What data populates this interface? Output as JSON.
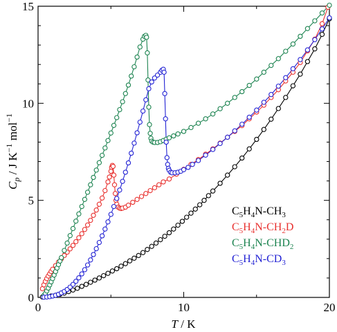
{
  "chart_data": {
    "type": "line",
    "xlabel": {
      "var": "T",
      "unit": " / K"
    },
    "ylabel": {
      "var": "C",
      "sub": "p",
      "unit": " / J K",
      "sup1": "−1",
      "unit2": " mol",
      "sup2": "−1"
    },
    "xlim": [
      0,
      20
    ],
    "ylim": [
      0,
      15
    ],
    "x_ticks": [
      0,
      10,
      20
    ],
    "y_ticks": [
      0,
      5,
      10,
      15
    ],
    "grid": false,
    "legend_position": "bottom-right",
    "series": [
      {
        "name": "C5H4N-CH3",
        "legend": {
          "main": "C",
          "s1": "5",
          "mid": "H",
          "s2": "4",
          "rest": "N-CH",
          "s3": "3",
          "tail": ""
        },
        "color": "#000000",
        "x": [
          0.3,
          0.6,
          0.9,
          1.2,
          1.5,
          1.8,
          2.1,
          2.4,
          2.7,
          3.0,
          3.3,
          3.6,
          3.9,
          4.2,
          4.5,
          4.8,
          5.1,
          5.4,
          5.7,
          6.0,
          6.3,
          6.6,
          6.9,
          7.2,
          7.5,
          7.8,
          8.1,
          8.4,
          8.7,
          9.0,
          9.3,
          9.6,
          9.9,
          10.2,
          10.5,
          10.8,
          11.1,
          11.4,
          11.7,
          12.0,
          12.5,
          13.0,
          13.5,
          14.0,
          14.5,
          15.0,
          15.5,
          16.0,
          16.5,
          17.0,
          17.5,
          18.0,
          18.5,
          19.0,
          19.5,
          20.0
        ],
        "y": [
          0.02,
          0.04,
          0.07,
          0.11,
          0.16,
          0.22,
          0.3,
          0.38,
          0.47,
          0.57,
          0.67,
          0.78,
          0.89,
          1.0,
          1.12,
          1.24,
          1.36,
          1.48,
          1.61,
          1.74,
          1.88,
          2.02,
          2.16,
          2.31,
          2.47,
          2.63,
          2.8,
          2.97,
          3.15,
          3.33,
          3.52,
          3.72,
          3.92,
          4.13,
          4.34,
          4.55,
          4.77,
          5.0,
          5.24,
          5.48,
          5.88,
          6.3,
          6.73,
          7.18,
          7.65,
          8.14,
          8.65,
          9.18,
          9.73,
          10.3,
          10.9,
          11.5,
          12.15,
          12.8,
          13.55,
          14.35
        ]
      },
      {
        "name": "C5H4N-CH2D",
        "legend": {
          "main": "C",
          "s1": "5",
          "mid": "H",
          "s2": "4",
          "rest": "N-CH",
          "s3": "2",
          "tail": "D"
        },
        "color": "#e8312f",
        "x": [
          0.3,
          0.4,
          0.5,
          0.6,
          0.7,
          0.8,
          0.9,
          1.0,
          1.2,
          1.4,
          1.6,
          1.8,
          2.0,
          2.2,
          2.4,
          2.6,
          2.8,
          3.0,
          3.2,
          3.4,
          3.6,
          3.8,
          4.0,
          4.2,
          4.4,
          4.6,
          4.8,
          4.9,
          5.0,
          5.05,
          5.1,
          5.15,
          5.2,
          5.25,
          5.3,
          5.35,
          5.4,
          5.5,
          5.6,
          5.7,
          5.8,
          6.0,
          6.2,
          6.5,
          6.8,
          7.1,
          7.4,
          7.7,
          8.0,
          8.3,
          8.6,
          9.0,
          9.5,
          10.0,
          10.5,
          11.0,
          11.5,
          12.0,
          12.5,
          13.0,
          13.5,
          14.0,
          14.5,
          15.0,
          15.5,
          16.0,
          16.5,
          17.0,
          17.5,
          18.0,
          18.5,
          19.0,
          19.5,
          19.9
        ],
        "y": [
          0.45,
          0.65,
          0.82,
          0.97,
          1.1,
          1.22,
          1.34,
          1.45,
          1.64,
          1.82,
          1.99,
          2.16,
          2.33,
          2.5,
          2.68,
          2.87,
          3.07,
          3.28,
          3.5,
          3.73,
          3.97,
          4.23,
          4.5,
          4.8,
          5.12,
          5.5,
          5.95,
          6.2,
          6.5,
          6.7,
          6.8,
          6.75,
          6.3,
          5.8,
          5.35,
          5.0,
          4.8,
          4.65,
          4.6,
          4.58,
          4.6,
          4.65,
          4.75,
          4.9,
          5.05,
          5.2,
          5.35,
          5.5,
          5.65,
          5.8,
          5.95,
          6.1,
          6.35,
          6.6,
          6.85,
          7.1,
          7.38,
          7.65,
          7.95,
          8.25,
          8.55,
          8.85,
          9.2,
          9.55,
          9.9,
          10.3,
          10.7,
          11.15,
          11.6,
          12.1,
          12.7,
          13.3,
          14.1,
          14.95
        ]
      },
      {
        "name": "C5H4N-CHD2",
        "legend": {
          "main": "C",
          "s1": "5",
          "mid": "H",
          "s2": "4",
          "rest": "N-CHD",
          "s3": "2",
          "tail": ""
        },
        "color": "#1c8350",
        "x": [
          0.4,
          0.5,
          0.6,
          0.7,
          0.8,
          0.9,
          1.0,
          1.1,
          1.2,
          1.3,
          1.4,
          1.5,
          1.6,
          1.8,
          2.0,
          2.2,
          2.4,
          2.6,
          2.8,
          3.0,
          3.2,
          3.4,
          3.6,
          3.8,
          4.0,
          4.2,
          4.4,
          4.6,
          4.8,
          5.0,
          5.2,
          5.4,
          5.6,
          5.8,
          6.0,
          6.2,
          6.4,
          6.6,
          6.8,
          7.0,
          7.2,
          7.3,
          7.4,
          7.45,
          7.5,
          7.55,
          7.6,
          7.65,
          7.7,
          7.75,
          7.8,
          7.9,
          8.0,
          8.2,
          8.4,
          8.6,
          8.8,
          9.0,
          9.3,
          9.6,
          10.0,
          10.5,
          11.0,
          11.5,
          12.0,
          12.5,
          13.0,
          13.5,
          14.0,
          14.5,
          15.0,
          15.5,
          16.0,
          16.5,
          17.0,
          17.5,
          18.0,
          18.5,
          19.0,
          19.5,
          20.0
        ],
        "y": [
          0.1,
          0.2,
          0.33,
          0.48,
          0.64,
          0.8,
          0.97,
          1.15,
          1.33,
          1.51,
          1.69,
          1.87,
          2.05,
          2.42,
          2.8,
          3.18,
          3.55,
          3.93,
          4.3,
          4.68,
          5.05,
          5.42,
          5.8,
          6.18,
          6.56,
          6.94,
          7.32,
          7.7,
          8.08,
          8.47,
          8.86,
          9.26,
          9.67,
          10.08,
          10.5,
          10.94,
          11.4,
          11.88,
          12.38,
          12.9,
          13.3,
          13.45,
          13.5,
          13.4,
          12.6,
          11.2,
          9.8,
          8.9,
          8.45,
          8.2,
          8.05,
          8.0,
          7.98,
          7.98,
          8.02,
          8.08,
          8.15,
          8.22,
          8.32,
          8.42,
          8.55,
          8.75,
          8.97,
          9.2,
          9.45,
          9.72,
          10.0,
          10.3,
          10.6,
          10.92,
          11.25,
          11.6,
          11.95,
          12.3,
          12.68,
          13.05,
          13.45,
          13.85,
          14.25,
          14.65,
          15.05
        ]
      },
      {
        "name": "C5H4N-CD3",
        "legend": {
          "main": "C",
          "s1": "5",
          "mid": "H",
          "s2": "4",
          "rest": "N-CD",
          "s3": "3",
          "tail": ""
        },
        "color": "#2323d4",
        "x": [
          0.4,
          0.6,
          0.8,
          1.0,
          1.2,
          1.4,
          1.6,
          1.8,
          2.0,
          2.2,
          2.4,
          2.6,
          2.8,
          3.0,
          3.2,
          3.4,
          3.6,
          3.8,
          4.0,
          4.2,
          4.4,
          4.6,
          4.8,
          5.0,
          5.2,
          5.4,
          5.6,
          5.8,
          6.0,
          6.2,
          6.4,
          6.6,
          6.8,
          7.0,
          7.2,
          7.4,
          7.6,
          7.8,
          8.0,
          8.2,
          8.4,
          8.5,
          8.6,
          8.65,
          8.7,
          8.75,
          8.8,
          8.85,
          8.9,
          8.95,
          9.0,
          9.1,
          9.2,
          9.4,
          9.6,
          9.8,
          10.0,
          10.3,
          10.6,
          11.0,
          11.5,
          12.0,
          12.5,
          13.0,
          13.5,
          14.0,
          14.5,
          15.0,
          15.5,
          16.0,
          16.5,
          17.0,
          17.5,
          18.0,
          18.5,
          19.0,
          19.5,
          20.0
        ],
        "y": [
          0.01,
          0.02,
          0.04,
          0.07,
          0.11,
          0.16,
          0.23,
          0.31,
          0.41,
          0.53,
          0.67,
          0.83,
          1.01,
          1.21,
          1.43,
          1.67,
          1.93,
          2.21,
          2.51,
          2.83,
          3.17,
          3.52,
          3.89,
          4.28,
          4.68,
          5.1,
          5.53,
          5.98,
          6.45,
          6.93,
          7.43,
          7.95,
          8.48,
          9.03,
          9.6,
          10.18,
          10.75,
          11.1,
          11.3,
          11.45,
          11.6,
          11.7,
          11.75,
          11.6,
          10.5,
          9.2,
          8.0,
          7.2,
          6.85,
          6.65,
          6.55,
          6.45,
          6.42,
          6.42,
          6.45,
          6.5,
          6.58,
          6.7,
          6.85,
          7.05,
          7.33,
          7.62,
          7.93,
          8.25,
          8.58,
          8.92,
          9.28,
          9.65,
          10.05,
          10.45,
          10.88,
          11.32,
          11.78,
          12.25,
          12.75,
          13.28,
          13.83,
          14.4
        ]
      }
    ]
  }
}
